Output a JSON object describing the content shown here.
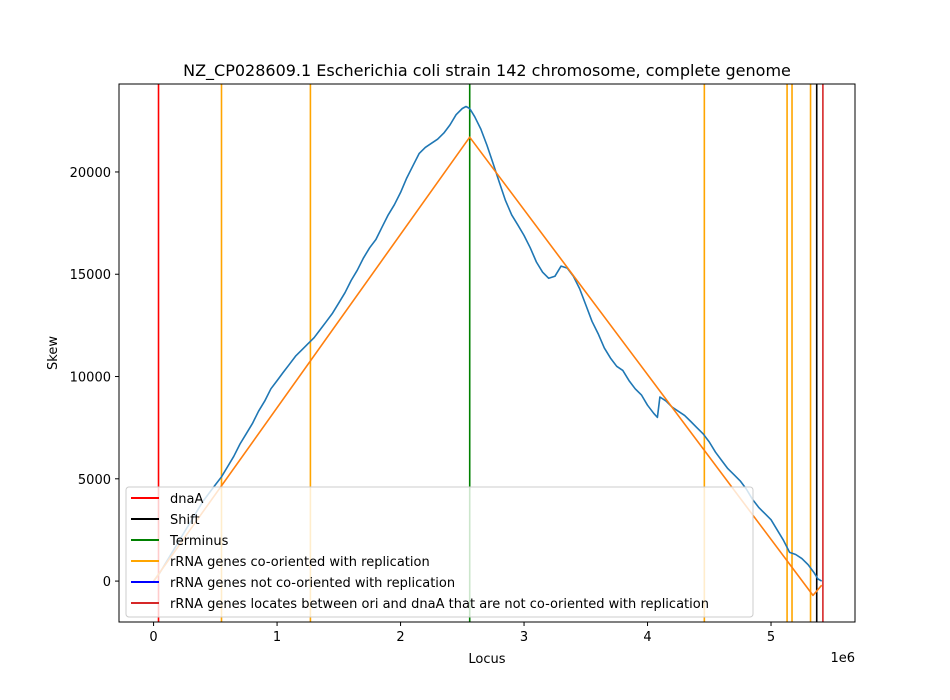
{
  "chart_data": {
    "type": "line",
    "title": "NZ_CP028609.1 Escherichia coli strain 142 chromosome, complete genome",
    "xlabel": "Locus",
    "ylabel": "Skew",
    "x_offset_label": "1e6",
    "xlim": [
      -0.28,
      5.68
    ],
    "ylim": [
      -2000,
      24300
    ],
    "x_ticks": [
      0,
      1,
      2,
      3,
      4,
      5
    ],
    "y_ticks": [
      0,
      5000,
      10000,
      15000,
      20000
    ],
    "grid": false,
    "legend_position": "lower-left",
    "colors": {
      "skew": "#1f77b4",
      "fit": "#ff7f0e",
      "dnaA": "#ff0000",
      "shift": "#000000",
      "terminus": "#008000",
      "rrna_co": "#ffa500",
      "rrna_not_co": "#0000ff",
      "rrna_between": "#d62728"
    },
    "series": [
      {
        "name": "",
        "kind": "skew",
        "x": [
          0.0,
          0.05,
          0.1,
          0.15,
          0.2,
          0.25,
          0.3,
          0.35,
          0.4,
          0.45,
          0.5,
          0.55,
          0.6,
          0.65,
          0.7,
          0.75,
          0.8,
          0.85,
          0.9,
          0.95,
          1.0,
          1.05,
          1.1,
          1.15,
          1.2,
          1.25,
          1.3,
          1.35,
          1.4,
          1.45,
          1.5,
          1.55,
          1.6,
          1.65,
          1.7,
          1.75,
          1.8,
          1.85,
          1.9,
          1.95,
          2.0,
          2.05,
          2.1,
          2.15,
          2.2,
          2.25,
          2.3,
          2.35,
          2.4,
          2.45,
          2.5,
          2.53,
          2.56,
          2.6,
          2.65,
          2.7,
          2.75,
          2.8,
          2.85,
          2.9,
          2.95,
          3.0,
          3.05,
          3.1,
          3.15,
          3.2,
          3.25,
          3.3,
          3.35,
          3.4,
          3.45,
          3.5,
          3.55,
          3.6,
          3.65,
          3.7,
          3.75,
          3.8,
          3.85,
          3.9,
          3.95,
          4.0,
          4.05,
          4.08,
          4.1,
          4.15,
          4.2,
          4.25,
          4.3,
          4.35,
          4.4,
          4.45,
          4.5,
          4.55,
          4.6,
          4.65,
          4.7,
          4.75,
          4.8,
          4.85,
          4.9,
          4.95,
          5.0,
          5.05,
          5.1,
          5.15,
          5.2,
          5.25,
          5.3,
          5.35,
          5.38,
          5.41
        ],
        "y": [
          0,
          400,
          900,
          1400,
          1900,
          2400,
          2900,
          3400,
          3900,
          4300,
          4700,
          5100,
          5600,
          6100,
          6700,
          7200,
          7700,
          8300,
          8800,
          9400,
          9800,
          10200,
          10600,
          11000,
          11300,
          11600,
          11900,
          12300,
          12700,
          13100,
          13600,
          14100,
          14700,
          15200,
          15800,
          16300,
          16700,
          17300,
          17900,
          18400,
          19000,
          19700,
          20300,
          20900,
          21200,
          21400,
          21600,
          21900,
          22300,
          22800,
          23100,
          23200,
          23100,
          22700,
          22100,
          21300,
          20400,
          19500,
          18600,
          17900,
          17400,
          16900,
          16300,
          15600,
          15100,
          14800,
          14900,
          15400,
          15300,
          14900,
          14300,
          13500,
          12700,
          12100,
          11400,
          10900,
          10500,
          10300,
          9800,
          9400,
          9100,
          8600,
          8200,
          8000,
          9000,
          8800,
          8500,
          8300,
          8100,
          7800,
          7500,
          7200,
          6800,
          6300,
          5900,
          5500,
          5200,
          4900,
          4500,
          4000,
          3600,
          3300,
          3000,
          2500,
          2000,
          1400,
          1300,
          1100,
          800,
          400,
          100,
          0
        ]
      },
      {
        "name": "",
        "kind": "fit",
        "x": [
          0.0,
          2.56,
          5.34,
          5.41
        ],
        "y": [
          0,
          21700,
          -700,
          -200
        ]
      }
    ],
    "vlines": {
      "dnaA": [
        0.04
      ],
      "shift": [
        5.37
      ],
      "terminus": [
        2.56
      ],
      "rrna_co": [
        0.55,
        1.27,
        4.46,
        5.13,
        5.17,
        5.32
      ],
      "rrna_not_co": [],
      "rrna_between": [
        5.42
      ]
    },
    "legend": [
      {
        "key": "dnaA",
        "label": "dnaA"
      },
      {
        "key": "shift",
        "label": "Shift"
      },
      {
        "key": "terminus",
        "label": "Terminus"
      },
      {
        "key": "rrna_co",
        "label": "rRNA genes co-oriented with replication"
      },
      {
        "key": "rrna_not_co",
        "label": "rRNA genes not co-oriented with replication"
      },
      {
        "key": "rrna_between",
        "label": "rRNA genes locates between ori and dnaA that are not co-oriented with replication"
      }
    ]
  }
}
